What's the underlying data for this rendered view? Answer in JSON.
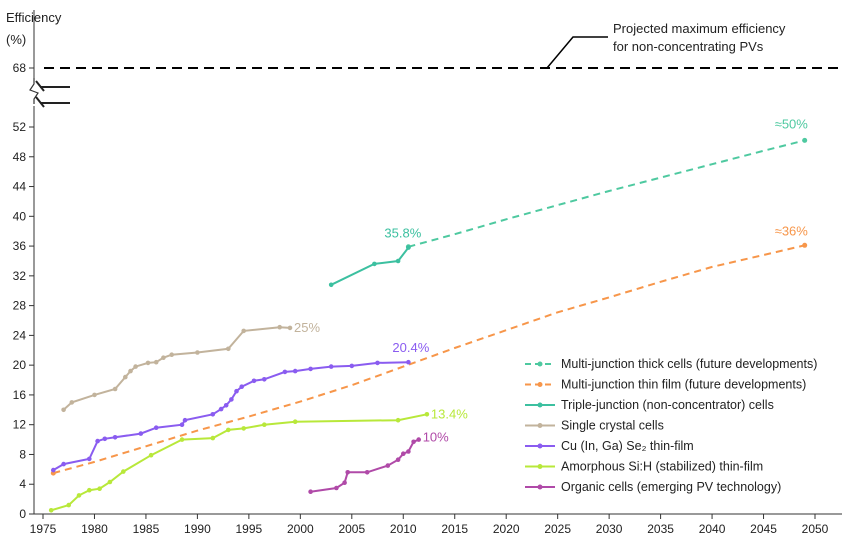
{
  "chart_data": {
    "type": "line",
    "ylabel_line1": "Efficiency",
    "ylabel_line2": "(%)",
    "xlim": [
      1973,
      2051
    ],
    "ylim": [
      0,
      54
    ],
    "x_ticks": [
      1975,
      1980,
      1985,
      1990,
      1995,
      2000,
      2005,
      2010,
      2015,
      2020,
      2025,
      2030,
      2035,
      2040,
      2045,
      2050
    ],
    "y_ticks": [
      0,
      4,
      8,
      12,
      16,
      20,
      24,
      28,
      32,
      36,
      40,
      44,
      48,
      52
    ],
    "y_break_tick": "68",
    "projected_max": {
      "value": 68,
      "label_line1": "Projected  maximum  efficiency",
      "label_line2": "for  non-concentrating  PVs"
    },
    "series": [
      {
        "name": "Multi-junction thick cells (future  developments)",
        "color": "#4ec9a0",
        "dashed": true,
        "x": [
          2010.5,
          2015,
          2020,
          2025,
          2030,
          2035,
          2040,
          2045,
          2049
        ],
        "y": [
          35.9,
          37.6,
          39.6,
          41.5,
          43.4,
          45.2,
          47.0,
          48.8,
          50.2
        ],
        "end_label": "≈50%"
      },
      {
        "name": "Multi-junction thin film (future developments)",
        "color": "#f7964a",
        "dashed": true,
        "x": [
          1976,
          1980,
          1985,
          1990,
          1995,
          2000,
          2005,
          2010,
          2015,
          2020,
          2025,
          2030,
          2035,
          2040,
          2045,
          2049
        ],
        "y": [
          5.5,
          7.0,
          9.1,
          11.2,
          13.1,
          15.1,
          17.3,
          19.8,
          22.3,
          24.7,
          27.1,
          29.1,
          31.2,
          33.2,
          34.8,
          36.1
        ],
        "end_label": "≈36%"
      },
      {
        "name": "Triple-junction  (non-concentrator)  cells",
        "color": "#3cc0a0",
        "dashed": false,
        "x": [
          2003,
          2007.2,
          2009.5,
          2010.5
        ],
        "y": [
          30.8,
          33.6,
          34.0,
          35.8
        ],
        "end_label": "35.8%"
      },
      {
        "name": "Single crystal cells",
        "color": "#c2b39c",
        "dashed": false,
        "x": [
          1977,
          1977.8,
          1980,
          1982,
          1983,
          1983.5,
          1984,
          1985.2,
          1986,
          1986.7,
          1987.5,
          1990,
          1993,
          1994.5,
          1998,
          1999
        ],
        "y": [
          14.0,
          15.0,
          16.0,
          16.8,
          18.4,
          19.2,
          19.8,
          20.3,
          20.4,
          21.0,
          21.4,
          21.7,
          22.2,
          24.6,
          25.1,
          25.0
        ],
        "end_label": "25%"
      },
      {
        "name": "Cu (In, Ga) Se₂ thin-film",
        "color": "#8a5cf0",
        "dashed": false,
        "x": [
          1976,
          1977,
          1979.5,
          1980.3,
          1981,
          1982,
          1984.5,
          1986,
          1988.5,
          1988.8,
          1991.5,
          1992.3,
          1992.8,
          1993.3,
          1993.8,
          1994.3,
          1995.5,
          1996.5,
          1998.5,
          1999.5,
          2001,
          2003,
          2005,
          2007.5,
          2010.5
        ],
        "y": [
          5.9,
          6.7,
          7.4,
          9.8,
          10.1,
          10.3,
          10.8,
          11.6,
          12.0,
          12.6,
          13.4,
          14.1,
          14.6,
          15.4,
          16.5,
          17.1,
          17.9,
          18.1,
          19.1,
          19.2,
          19.5,
          19.8,
          19.9,
          20.3,
          20.4
        ],
        "end_label": "20.4%"
      },
      {
        "name": "Amorphous Si:H  (stabilized) thin-film",
        "color": "#b8e83a",
        "dashed": false,
        "x": [
          1975.8,
          1977.5,
          1978.5,
          1979.5,
          1980.5,
          1981.5,
          1982.8,
          1985.5,
          1988.5,
          1991.5,
          1993,
          1994.5,
          1996.5,
          1999.5,
          2009.5,
          2012.3
        ],
        "y": [
          0.5,
          1.2,
          2.5,
          3.2,
          3.4,
          4.3,
          5.7,
          7.9,
          10.0,
          10.2,
          11.3,
          11.5,
          12.0,
          12.4,
          12.6,
          13.4
        ],
        "end_label": "13.4%"
      },
      {
        "name": "Organic cells  (emerging PV  technology)",
        "color": "#b04aa8",
        "dashed": false,
        "x": [
          2001,
          2003.5,
          2004.3,
          2004.6,
          2006.5,
          2008.5,
          2009.5,
          2010,
          2010.5,
          2011,
          2011.5
        ],
        "y": [
          3.0,
          3.5,
          4.2,
          5.6,
          5.6,
          6.5,
          7.3,
          8.1,
          8.4,
          9.7,
          10.0
        ],
        "end_label": "10%"
      }
    ]
  }
}
